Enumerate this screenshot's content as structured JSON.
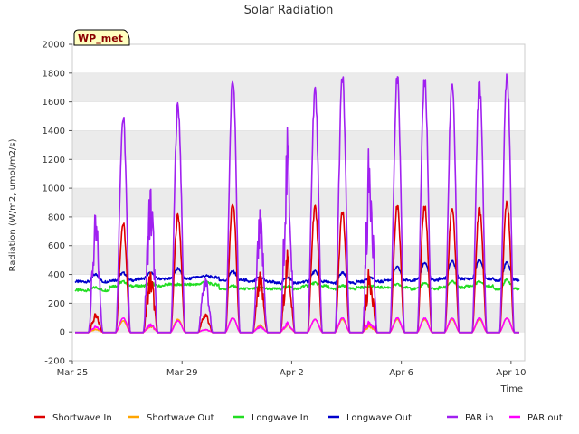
{
  "chart_data": {
    "type": "line",
    "title": "Solar Radiation",
    "xlabel": "Time",
    "ylabel": "Radiation (W/m2, umol/m2/s)",
    "badge": "WP_met",
    "ylim": [
      -200,
      2000
    ],
    "xlim": [
      0,
      16.5
    ],
    "x_unit": "days since Mar 25",
    "yticks": [
      "-200",
      "0",
      "200",
      "400",
      "600",
      "800",
      "1000",
      "1200",
      "1400",
      "1600",
      "1800",
      "2000"
    ],
    "xticks": [
      {
        "day": 0,
        "label": "Mar 25"
      },
      {
        "day": 4,
        "label": "Mar 29"
      },
      {
        "day": 8,
        "label": "Apr 2"
      },
      {
        "day": 12,
        "label": "Apr 6"
      },
      {
        "day": 16,
        "label": "Apr 10"
      }
    ],
    "grid": "horizontal bands",
    "legend_position": "bottom",
    "colors": {
      "shortwave_in": "#dd0000",
      "shortwave_out": "#ffa500",
      "longwave_in": "#22dd22",
      "longwave_out": "#0000cc",
      "par_in": "#a020f0",
      "par_out": "#ff00ff"
    },
    "daily_peaks_day_of_series": [
      0.85,
      1.85,
      2.85,
      3.85,
      4.85,
      5.85,
      6.85,
      7.85,
      8.85,
      9.85,
      10.85,
      11.85,
      12.85,
      13.85,
      14.85,
      15.85,
      16.85
    ],
    "series": [
      {
        "name": "Shortwave In",
        "key": "shortwave_in",
        "daily_peak": [
          130,
          780,
          450,
          840,
          150,
          930,
          420,
          580,
          900,
          860,
          470,
          900,
          910,
          900,
          890,
          950,
          940
        ]
      },
      {
        "name": "Shortwave Out",
        "key": "shortwave_out",
        "daily_peak": [
          20,
          80,
          50,
          90,
          20,
          100,
          50,
          60,
          90,
          90,
          50,
          90,
          90,
          90,
          90,
          100,
          100
        ]
      },
      {
        "name": "Longwave In",
        "key": "longwave_in",
        "daily_base": [
          290,
          320,
          320,
          330,
          330,
          300,
          300,
          300,
          320,
          300,
          310,
          310,
          300,
          310,
          320,
          300,
          320
        ],
        "daily_peak": [
          310,
          350,
          340,
          330,
          350,
          320,
          310,
          320,
          340,
          320,
          320,
          330,
          340,
          350,
          350,
          360,
          350
        ]
      },
      {
        "name": "Longwave Out",
        "key": "longwave_out",
        "daily_base": [
          350,
          360,
          370,
          370,
          380,
          360,
          350,
          340,
          350,
          340,
          350,
          360,
          360,
          370,
          370,
          360,
          380
        ],
        "daily_peak": [
          400,
          410,
          410,
          440,
          390,
          420,
          380,
          380,
          420,
          410,
          380,
          450,
          480,
          490,
          500,
          480,
          500
        ]
      },
      {
        "name": "PAR in",
        "key": "par_in",
        "daily_peak": [
          840,
          1540,
          1080,
          1630,
          450,
          1830,
          860,
          1440,
          1740,
          1830,
          1380,
          1820,
          1830,
          1810,
          1790,
          1870,
          1850
        ]
      },
      {
        "name": "PAR out",
        "key": "par_out",
        "daily_peak": [
          40,
          100,
          60,
          80,
          20,
          100,
          40,
          70,
          90,
          100,
          80,
          100,
          100,
          100,
          100,
          100,
          100
        ]
      }
    ]
  }
}
